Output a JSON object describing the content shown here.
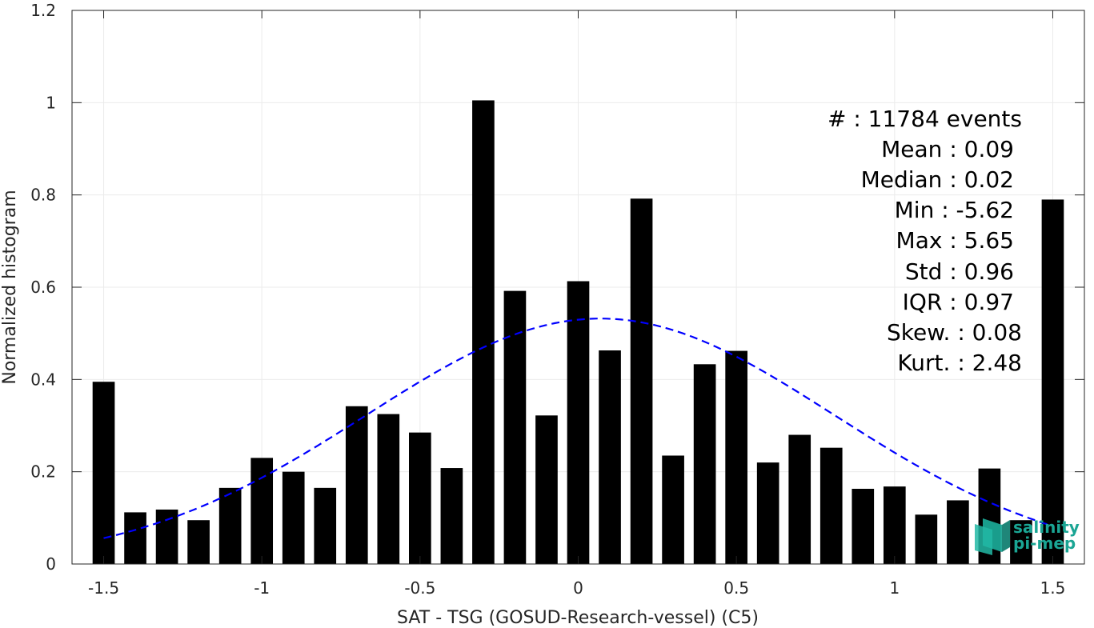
{
  "chart_data": {
    "type": "bar",
    "title": "",
    "xlabel": "SAT - TSG (GOSUD-Research-vessel) (C5)",
    "ylabel": "Normalized histogram",
    "xlim": [
      -1.6,
      1.6
    ],
    "ylim": [
      0,
      1.2
    ],
    "grid": true,
    "x_ticks": [
      -1.5,
      -1,
      -0.5,
      0,
      0.5,
      1,
      1.5
    ],
    "x_tick_labels": [
      "-1.5",
      "-1",
      "-0.5",
      "0",
      "0.5",
      "1",
      "1.5"
    ],
    "y_ticks": [
      0,
      0.2,
      0.4,
      0.6,
      0.8,
      1,
      1.2
    ],
    "y_tick_labels": [
      "0",
      "0.2",
      "0.4",
      "0.6",
      "0.8",
      "1",
      "1.2"
    ],
    "bar_width": 0.07,
    "bar_color": "#000000",
    "series": [
      {
        "x": [
          -1.5,
          -1.4,
          -1.3,
          -1.2,
          -1.1,
          -1.0,
          -0.9,
          -0.8,
          -0.7,
          -0.6,
          -0.5,
          -0.4,
          -0.3,
          -0.2,
          -0.1,
          0.0,
          0.1,
          0.2,
          0.3,
          0.4,
          0.5,
          0.6,
          0.7,
          0.8,
          0.9,
          1.0,
          1.1,
          1.2,
          1.3,
          1.4,
          1.5
        ],
        "values": [
          0.395,
          0.112,
          0.118,
          0.095,
          0.165,
          0.23,
          0.2,
          0.165,
          0.342,
          0.325,
          0.285,
          0.208,
          1.005,
          0.592,
          0.322,
          0.613,
          0.463,
          0.792,
          0.235,
          0.433,
          0.462,
          0.22,
          0.28,
          0.252,
          0.163,
          0.168,
          0.107,
          0.138,
          0.207,
          0.095,
          0.79
        ]
      }
    ],
    "fit_curve": {
      "type": "gaussian",
      "style": "dashed",
      "color": "#0000ff",
      "mean": 0.07,
      "std": 0.74,
      "peak": 0.532,
      "x_range": [
        -1.5,
        1.5
      ]
    }
  },
  "stats": [
    {
      "label": "#  : 11784 events"
    },
    {
      "label": "Mean : 0.09"
    },
    {
      "label": "Median : 0.02"
    },
    {
      "label": "Min : -5.62"
    },
    {
      "label": "Max : 5.65"
    },
    {
      "label": "Std : 0.96"
    },
    {
      "label": "IQR : 0.97"
    },
    {
      "label": "Skew. : 0.08"
    },
    {
      "label": "Kurt. : 2.48"
    }
  ],
  "logo": {
    "line1": "salinity",
    "line2": "pi-mep",
    "color": "#1aa594"
  }
}
